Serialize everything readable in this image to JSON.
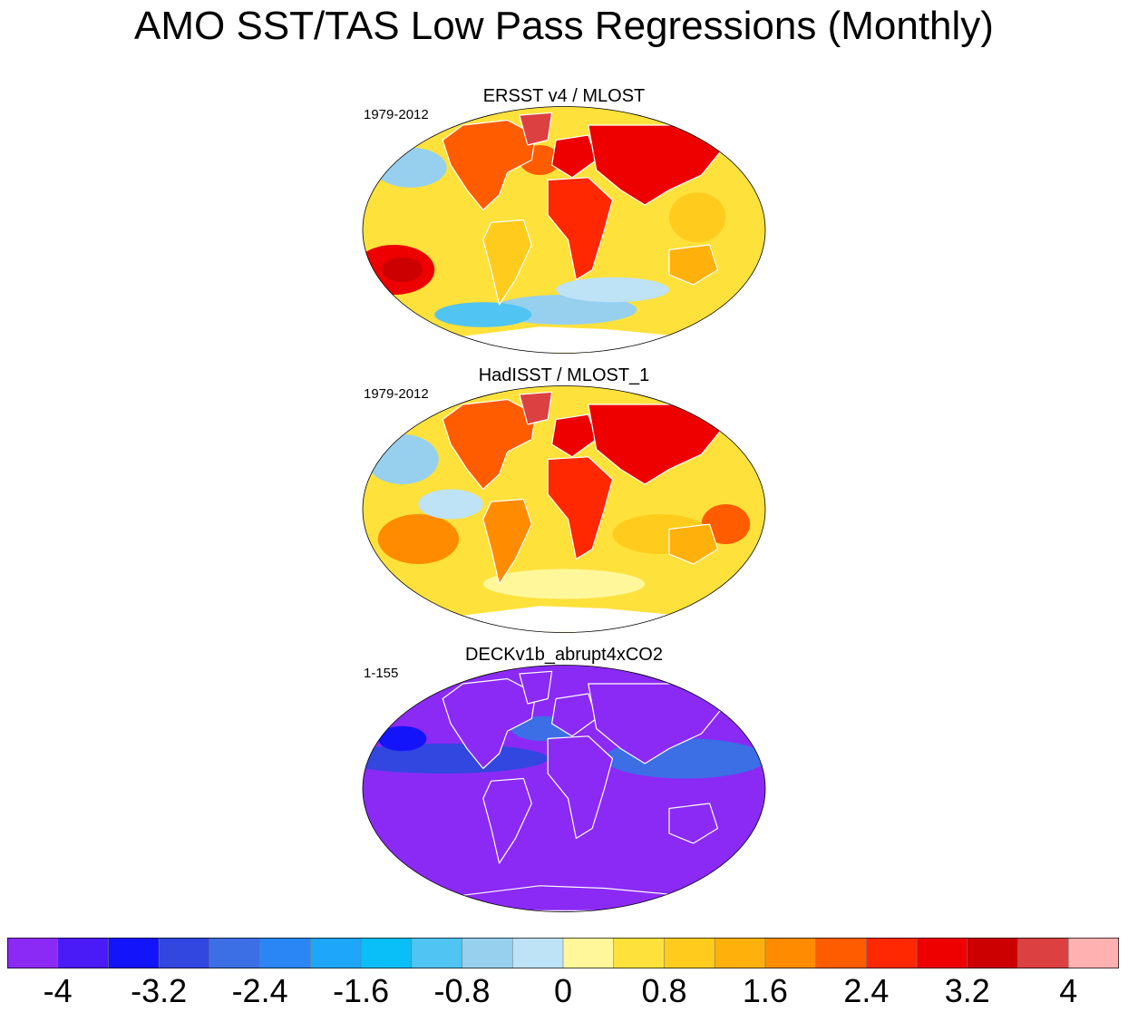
{
  "title": "AMO SST/TAS Low Pass Regressions (Monthly)",
  "panels": [
    {
      "title": "ERSST v4 / MLOST",
      "period": "1979-2012",
      "style": "obs1"
    },
    {
      "title": "HadISST / MLOST_1",
      "period": "1979-2012",
      "style": "obs2"
    },
    {
      "title": "DECKv1b_abrupt4xCO2",
      "period": "1-155",
      "style": "model"
    }
  ],
  "colorbar": {
    "colors": [
      "#8b2af5",
      "#4a1af7",
      "#1414fa",
      "#3246e0",
      "#3c6ee6",
      "#2a86f5",
      "#1ea6fa",
      "#0abef8",
      "#50c4f2",
      "#96d0ee",
      "#bee2f6",
      "#fff79a",
      "#ffe13c",
      "#ffcc1e",
      "#ffb00a",
      "#ff8c00",
      "#ff5c00",
      "#ff2800",
      "#ee0000",
      "#cc0000",
      "#dc4040",
      "#ffb0b0"
    ],
    "labels": [
      "-4",
      "-3.2",
      "-2.4",
      "-1.6",
      "-0.8",
      "0",
      "0.8",
      "1.6",
      "2.4",
      "3.2",
      "4"
    ]
  }
}
